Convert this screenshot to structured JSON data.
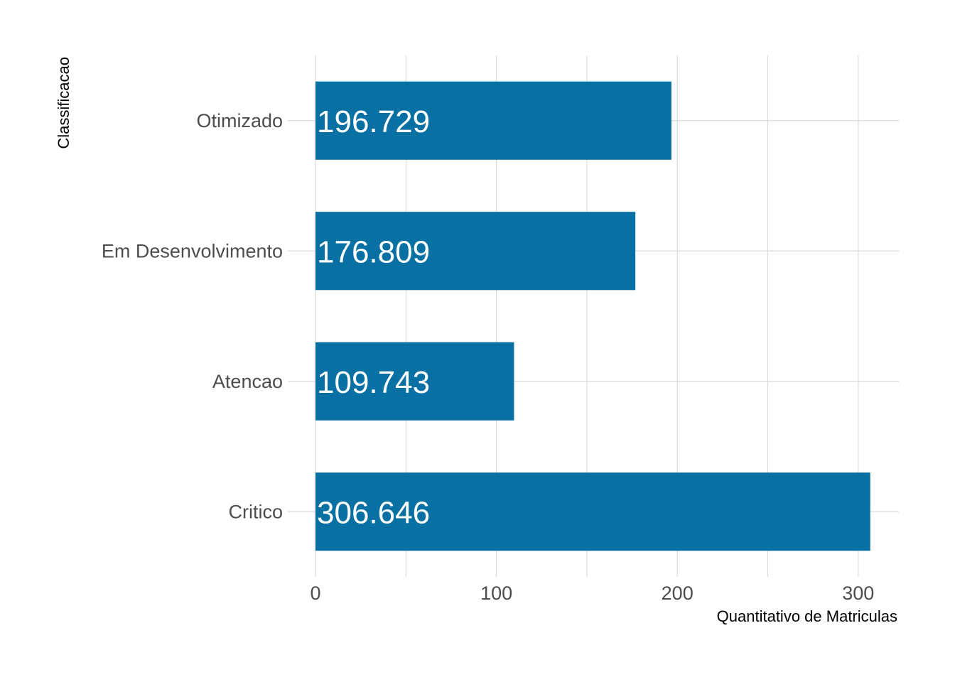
{
  "chart_data": {
    "type": "bar",
    "orientation": "horizontal",
    "categories": [
      "Otimizado",
      "Em Desenvolvimento",
      "Atencao",
      "Critico"
    ],
    "values": [
      196.729,
      176.809,
      109.743,
      306.646
    ],
    "data_labels": [
      "196.729",
      "176.809",
      "109.743",
      "306.646"
    ],
    "xlabel": "Quantitativo de Matriculas",
    "ylabel": "Classificacao",
    "x_ticks": [
      0,
      100,
      200,
      300
    ],
    "x_tick_labels": [
      "0",
      "100",
      "200",
      "300"
    ],
    "xlim": [
      0,
      322
    ],
    "grid": true,
    "bar_color": "#0870a3",
    "grid_color": "#d9d9d9"
  }
}
